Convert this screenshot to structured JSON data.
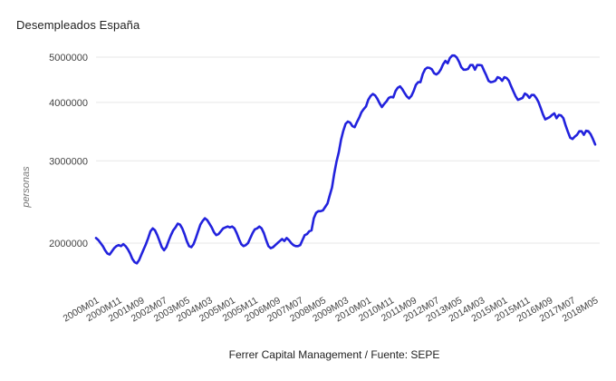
{
  "chart_data": {
    "type": "line",
    "title": "Desempleados España",
    "xlabel": "",
    "ylabel": "personas",
    "caption": "Ferrer Capital Management / Fuente: SEPE",
    "y_scale": "log",
    "y_ticks": [
      2000000,
      3000000,
      4000000,
      5000000
    ],
    "y_tick_labels": [
      "2000000",
      "3000000",
      "4000000",
      "5000000"
    ],
    "grid": "horizontal",
    "legend": "none",
    "line_color": "#2222dd",
    "grid_color": "#e7e7e7",
    "title_color": "#212121",
    "tick_color": "#434343",
    "axis_title_color": "#757575",
    "x_start": "2000M01",
    "x_end": "2018M05",
    "x_step_months": 1,
    "x_tick_every": 10,
    "x_tick_labels": [
      "2000M01",
      "2000M11",
      "2001M09",
      "2002M07",
      "2003M05",
      "2004M03",
      "2005M01",
      "2005M11",
      "2006M09",
      "2007M07",
      "2008M05",
      "2009M03",
      "2010M01",
      "2010M11",
      "2011M09",
      "2012M07",
      "2013M05",
      "2014M03",
      "2015M01",
      "2015M11",
      "2016M09",
      "2017M07",
      "2018M05"
    ],
    "series": [
      {
        "name": "Desempleados",
        "values": [
          2050000,
          2030000,
          2000000,
          1970000,
          1930000,
          1900000,
          1890000,
          1920000,
          1950000,
          1970000,
          1980000,
          1970000,
          1990000,
          1970000,
          1940000,
          1900000,
          1850000,
          1820000,
          1810000,
          1840000,
          1890000,
          1940000,
          1990000,
          2050000,
          2120000,
          2150000,
          2130000,
          2080000,
          2020000,
          1960000,
          1930000,
          1960000,
          2020000,
          2080000,
          2130000,
          2160000,
          2200000,
          2190000,
          2150000,
          2090000,
          2020000,
          1970000,
          1960000,
          1990000,
          2050000,
          2120000,
          2190000,
          2230000,
          2260000,
          2240000,
          2200000,
          2160000,
          2110000,
          2080000,
          2090000,
          2120000,
          2150000,
          2160000,
          2170000,
          2160000,
          2170000,
          2150000,
          2100000,
          2040000,
          1990000,
          1970000,
          1980000,
          2000000,
          2050000,
          2100000,
          2140000,
          2150000,
          2170000,
          2150000,
          2100000,
          2030000,
          1970000,
          1950000,
          1960000,
          1980000,
          2000000,
          2020000,
          2040000,
          2020000,
          2050000,
          2030000,
          2000000,
          1980000,
          1970000,
          1970000,
          1980000,
          2030000,
          2080000,
          2090000,
          2120000,
          2130000,
          2260000,
          2320000,
          2340000,
          2340000,
          2350000,
          2390000,
          2430000,
          2530000,
          2630000,
          2820000,
          2990000,
          3130000,
          3330000,
          3480000,
          3600000,
          3640000,
          3620000,
          3560000,
          3540000,
          3630000,
          3710000,
          3810000,
          3870000,
          3920000,
          4050000,
          4130000,
          4170000,
          4140000,
          4070000,
          3980000,
          3910000,
          3970000,
          4020000,
          4090000,
          4110000,
          4100000,
          4230000,
          4300000,
          4330000,
          4270000,
          4190000,
          4120000,
          4080000,
          4130000,
          4230000,
          4360000,
          4420000,
          4420000,
          4600000,
          4710000,
          4750000,
          4740000,
          4710000,
          4620000,
          4590000,
          4630000,
          4710000,
          4830000,
          4910000,
          4850000,
          4980000,
          5040000,
          5040000,
          4990000,
          4890000,
          4760000,
          4700000,
          4700000,
          4720000,
          4810000,
          4810000,
          4700000,
          4810000,
          4810000,
          4800000,
          4680000,
          4570000,
          4450000,
          4420000,
          4430000,
          4450000,
          4530000,
          4510000,
          4450000,
          4530000,
          4510000,
          4450000,
          4330000,
          4220000,
          4120000,
          4050000,
          4070000,
          4090000,
          4180000,
          4150000,
          4090000,
          4150000,
          4150000,
          4090000,
          4010000,
          3890000,
          3770000,
          3680000,
          3700000,
          3720000,
          3760000,
          3790000,
          3700000,
          3760000,
          3750000,
          3700000,
          3570000,
          3460000,
          3360000,
          3340000,
          3380000,
          3410000,
          3470000,
          3470000,
          3410000,
          3480000,
          3470000,
          3420000,
          3340000,
          3250000
        ]
      }
    ]
  }
}
